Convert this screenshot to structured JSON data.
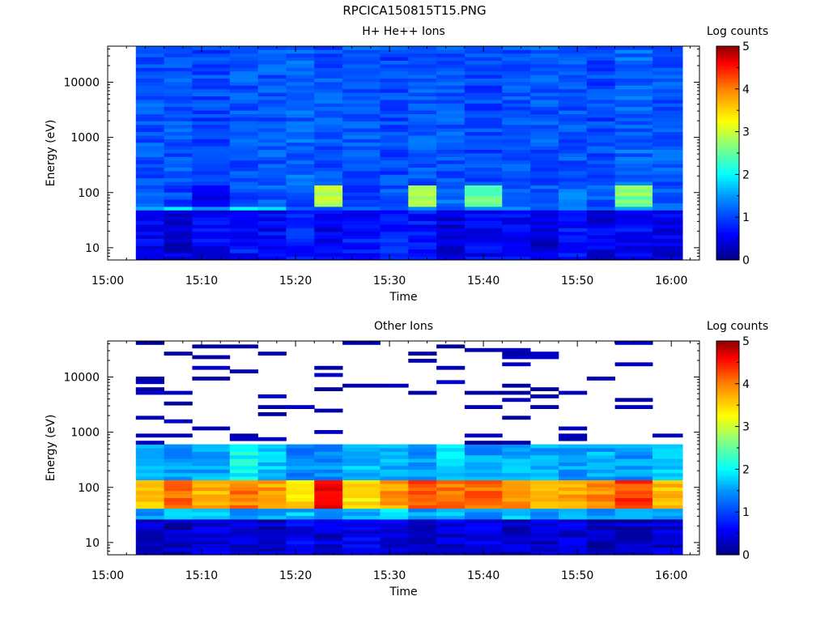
{
  "figure": {
    "suptitle": "RPCICA150815T15.PNG"
  },
  "chart_data": [
    {
      "type": "heatmap",
      "title": "H+ He++ Ions",
      "xlabel": "Time",
      "ylabel": "Energy (eV)",
      "x_ticks": [
        "15:00",
        "15:10",
        "15:20",
        "15:30",
        "15:40",
        "15:50",
        "16:00"
      ],
      "x_range": [
        "15:00",
        "16:03"
      ],
      "y_scale": "log",
      "y_ticks": [
        10,
        100,
        1000,
        10000
      ],
      "y_range": [
        6,
        45000
      ],
      "colorbar": {
        "label": "Log counts",
        "ticks": [
          0,
          1,
          2,
          3,
          4,
          5
        ],
        "range": [
          0,
          5
        ],
        "colormap": "rainbow"
      },
      "time_bins": [
        "15:03",
        "15:06",
        "15:09",
        "15:13",
        "15:16",
        "15:19",
        "15:22",
        "15:25",
        "15:29",
        "15:32",
        "15:35",
        "15:38",
        "15:42",
        "15:45",
        "15:48",
        "15:51",
        "15:54",
        "15:58"
      ],
      "energy_bands": [
        {
          "energy_range_eV": [
            6,
            50
          ],
          "log_counts": [
            0.6,
            0.4,
            0.6,
            0.7,
            0.6,
            0.8,
            0.5,
            0.7,
            0.8,
            0.7,
            0.4,
            0.6,
            0.6,
            0.4,
            0.7,
            0.5,
            0.6,
            0.5
          ]
        },
        {
          "energy_range_eV": [
            40,
            60
          ],
          "log_counts": [
            1.6,
            2.0,
            1.4,
            1.9,
            1.6,
            1.3,
            1.0,
            1.2,
            1.1,
            1.4,
            0.9,
            1.5,
            1.3,
            1.0,
            1.5,
            1.3,
            1.6,
            1.2
          ]
        },
        {
          "energy_range_eV": [
            60,
            140
          ],
          "log_counts": [
            1.2,
            1.0,
            0.6,
            1.0,
            1.1,
            1.1,
            2.9,
            1.0,
            1.1,
            2.7,
            1.2,
            2.4,
            1.1,
            1.1,
            1.3,
            1.1,
            2.6,
            1.1
          ]
        },
        {
          "energy_range_eV": [
            140,
            45000
          ],
          "log_counts": [
            1.1,
            1.1,
            1.0,
            1.1,
            1.1,
            1.2,
            1.1,
            1.1,
            1.0,
            1.1,
            1.1,
            1.0,
            1.1,
            1.1,
            1.1,
            1.0,
            1.2,
            1.1
          ]
        }
      ]
    },
    {
      "type": "heatmap",
      "title": "Other Ions",
      "xlabel": "Time",
      "ylabel": "Energy (eV)",
      "x_ticks": [
        "15:00",
        "15:10",
        "15:20",
        "15:30",
        "15:40",
        "15:50",
        "16:00"
      ],
      "x_range": [
        "15:00",
        "16:03"
      ],
      "y_scale": "log",
      "y_ticks": [
        10,
        100,
        1000,
        10000
      ],
      "y_range": [
        6,
        45000
      ],
      "colorbar": {
        "label": "Log counts",
        "ticks": [
          0,
          1,
          2,
          3,
          4,
          5
        ],
        "range": [
          0,
          5
        ],
        "colormap": "rainbow"
      },
      "time_bins": [
        "15:03",
        "15:06",
        "15:09",
        "15:13",
        "15:16",
        "15:19",
        "15:22",
        "15:25",
        "15:29",
        "15:32",
        "15:35",
        "15:38",
        "15:42",
        "15:45",
        "15:48",
        "15:51",
        "15:54",
        "15:58"
      ],
      "energy_bands": [
        {
          "energy_range_eV": [
            6,
            25
          ],
          "log_counts": [
            0.4,
            0.3,
            0.4,
            0.4,
            0.3,
            0.5,
            0.4,
            0.5,
            0.4,
            0.4,
            0.4,
            0.5,
            0.3,
            0.4,
            0.4,
            0.3,
            0.3,
            0.4
          ]
        },
        {
          "energy_range_eV": [
            25,
            40
          ],
          "log_counts": [
            1.5,
            1.6,
            1.8,
            1.5,
            1.6,
            1.7,
            1.6,
            1.7,
            1.8,
            1.5,
            1.6,
            1.5,
            1.7,
            1.4,
            1.6,
            1.5,
            1.6,
            1.5
          ]
        },
        {
          "energy_range_eV": [
            40,
            140
          ],
          "log_counts": [
            3.6,
            4.1,
            3.7,
            4.0,
            3.8,
            3.5,
            4.5,
            3.4,
            3.8,
            4.3,
            4.0,
            4.1,
            3.9,
            3.7,
            3.8,
            3.9,
            4.3,
            3.6
          ]
        },
        {
          "energy_range_eV": [
            140,
            600
          ],
          "log_counts": [
            1.8,
            1.5,
            1.6,
            2.0,
            1.7,
            1.4,
            1.5,
            1.7,
            1.6,
            1.5,
            1.8,
            1.5,
            1.6,
            1.6,
            1.5,
            1.6,
            1.5,
            1.7
          ]
        },
        {
          "energy_range_eV": [
            600,
            45000
          ],
          "log_counts": [
            0.2,
            0.2,
            0.2,
            0.2,
            0.2,
            0.2,
            0.2,
            0.2,
            0.2,
            0.2,
            0.2,
            0.2,
            0.2,
            0.2,
            0.2,
            0.2,
            0.2,
            0.2
          ]
        }
      ]
    }
  ]
}
